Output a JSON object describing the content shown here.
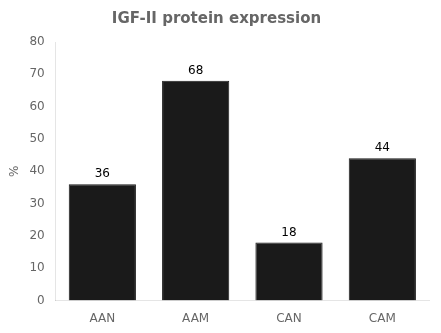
{
  "chart_data": {
    "type": "bar",
    "title": "IGF-II protein expression",
    "ylabel": "%",
    "categories": [
      "AAN",
      "AAM",
      "CAN",
      "CAM"
    ],
    "values": [
      36,
      68,
      18,
      44
    ],
    "color": "#1a1a1a",
    "ylim": [
      0,
      80
    ],
    "yticks": [
      0,
      10,
      20,
      30,
      40,
      50,
      60,
      70,
      80
    ],
    "grid": false,
    "data_labels": true
  }
}
